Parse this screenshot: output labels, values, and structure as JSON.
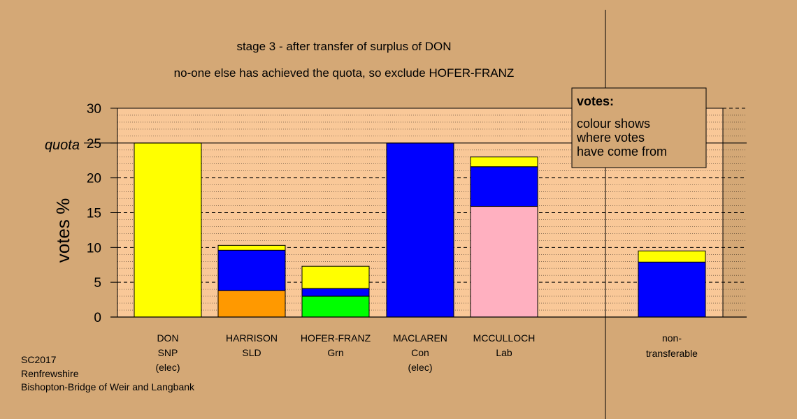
{
  "chart_data": {
    "type": "bar",
    "stacked": true,
    "title": "stage 3 - after transfer of surplus of DON",
    "subtitle": "no-one else has achieved the quota, so exclude HOFER-FRANZ",
    "ylabel": "votes %",
    "ylim": [
      0,
      30
    ],
    "yticks": [
      "0",
      "5",
      "10",
      "15",
      "20",
      "25",
      "30"
    ],
    "quota_value": 25,
    "quota_label": "quota",
    "grid": true,
    "categories": [
      {
        "lines": [
          "DON",
          "SNP",
          "(elec)"
        ]
      },
      {
        "lines": [
          "HARRISON",
          "SLD"
        ]
      },
      {
        "lines": [
          "HOFER-FRANZ",
          "Grn"
        ]
      },
      {
        "lines": [
          "MACLAREN",
          "Con",
          "(elec)"
        ]
      },
      {
        "lines": [
          "MCCULLOCH",
          "Lab"
        ]
      },
      {
        "lines": [
          "non-",
          "transferable"
        ]
      }
    ],
    "bars": [
      {
        "segments": [
          {
            "value": 25,
            "color": "#ffff00"
          }
        ]
      },
      {
        "segments": [
          {
            "value": 3.8,
            "color": "#ff9900"
          },
          {
            "value": 5.8,
            "color": "#0000ff"
          },
          {
            "value": 0.7,
            "color": "#ffff00"
          }
        ]
      },
      {
        "segments": [
          {
            "value": 3.0,
            "color": "#00ff00"
          },
          {
            "value": 1.1,
            "color": "#0000ff"
          },
          {
            "value": 3.2,
            "color": "#ffff00"
          }
        ]
      },
      {
        "segments": [
          {
            "value": 25,
            "color": "#0000ff"
          }
        ]
      },
      {
        "segments": [
          {
            "value": 15.9,
            "color": "#ffb0c0"
          },
          {
            "value": 5.7,
            "color": "#0000ff"
          },
          {
            "value": 1.4,
            "color": "#ffff00"
          }
        ]
      },
      {
        "segments": [
          {
            "value": 7.9,
            "color": "#0000ff"
          },
          {
            "value": 1.6,
            "color": "#ffff00"
          }
        ]
      }
    ],
    "legend": {
      "title": "votes:",
      "lines": [
        "colour shows",
        "where votes",
        "have come from"
      ],
      "position": "top-right"
    }
  },
  "footer": {
    "lines": [
      "SC2017",
      "Renfrewshire",
      "Bishopton-Bridge of Weir and Langbank"
    ]
  },
  "colors": {
    "background": "#d4a876",
    "plot_background": "#f9c898"
  }
}
